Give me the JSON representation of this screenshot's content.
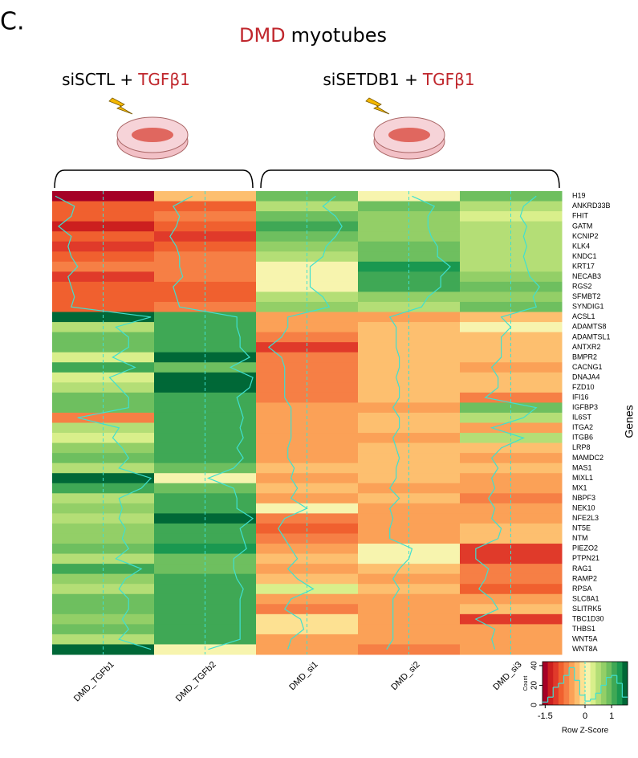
{
  "panel_label": "C.",
  "title": {
    "highlight": "DMD",
    "text": "myotubes"
  },
  "conditions": [
    {
      "label": "siSCTL +",
      "treatment": "TGFβ1"
    },
    {
      "label": "siSETDB1 +",
      "treatment": "TGFβ1"
    }
  ],
  "chart_data": {
    "type": "heatmap",
    "rows": [
      "H19",
      "ANKRD33B",
      "FHIT",
      "GATM",
      "KCNIP2",
      "KLK4",
      "KNDC1",
      "KRT17",
      "NECAB3",
      "RGS2",
      "SFMBT2",
      "SYNDIG1",
      "ACSL1",
      "ADAMTS8",
      "ADAMTSL1",
      "ANTXR2",
      "BMPR2",
      "CACNG1",
      "DNAJA4",
      "FZD10",
      "IFI16",
      "IGFBP3",
      "IL6ST",
      "ITGA2",
      "ITGB6",
      "LRP8",
      "MAMDC2",
      "MAS1",
      "MIXL1",
      "MX1",
      "NBPF3",
      "NEK10",
      "NFE2L3",
      "NT5E",
      "NTM",
      "PIEZO2",
      "PTPN21",
      "RAG1",
      "RAMP2",
      "RPSA",
      "SLC8A1",
      "SLITRK5",
      "TBC1D30",
      "THBS1",
      "WNT5A",
      "WNT8A"
    ],
    "series": [
      {
        "name": "DMD_TGFb1",
        "values": [
          -1.5,
          -0.9,
          -1.0,
          -1.4,
          -1.0,
          -1.1,
          -1.0,
          -0.8,
          -1.1,
          -1.0,
          -0.9,
          -1.0,
          1.5,
          0.4,
          0.8,
          0.8,
          0.3,
          1.0,
          0.2,
          0.5,
          0.8,
          0.8,
          -0.8,
          0.5,
          0.3,
          0.6,
          0.8,
          0.5,
          1.5,
          1.2,
          0.5,
          0.6,
          0.5,
          0.7,
          0.6,
          0.8,
          0.4,
          1.2,
          0.7,
          0.5,
          0.8,
          0.8,
          0.6,
          0.8,
          0.5,
          1.5
        ]
      },
      {
        "name": "DMD_TGFb2",
        "values": [
          -0.4,
          -1.0,
          -0.8,
          -0.9,
          -1.1,
          -0.9,
          -0.8,
          -0.8,
          -0.7,
          -1.0,
          -0.9,
          -0.8,
          1.0,
          1.0,
          1.1,
          1.1,
          1.4,
          0.8,
          1.5,
          1.4,
          1.0,
          1.1,
          1.2,
          1.1,
          1.2,
          1.0,
          1.2,
          0.9,
          0.1,
          0.9,
          1.0,
          1.0,
          1.5,
          1.1,
          1.2,
          1.3,
          0.9,
          0.9,
          1.0,
          1.2,
          1.1,
          1.1,
          1.1,
          1.1,
          1.1,
          0.1
        ]
      },
      {
        "name": "DMD_si1",
        "values": [
          0.9,
          0.5,
          0.9,
          1.1,
          0.9,
          0.6,
          0.5,
          0.1,
          0.1,
          0.1,
          0.5,
          0.7,
          -0.6,
          -0.6,
          -0.8,
          -1.2,
          -0.8,
          -0.7,
          -0.7,
          -0.7,
          -0.7,
          -0.5,
          -0.5,
          -0.5,
          -0.5,
          -0.6,
          -0.6,
          -0.4,
          -0.5,
          -0.3,
          -0.5,
          0.0,
          -0.7,
          -0.9,
          -0.7,
          -0.5,
          -0.3,
          -0.6,
          -0.3,
          0.2,
          -0.5,
          -0.7,
          -0.2,
          -0.1,
          -0.5,
          -0.6
        ]
      },
      {
        "name": "DMD_si2",
        "values": [
          0.1,
          0.8,
          0.6,
          0.6,
          0.7,
          0.9,
          0.9,
          1.3,
          1.0,
          1.0,
          0.6,
          0.4,
          -0.6,
          -0.4,
          -0.4,
          -0.4,
          -0.3,
          -0.3,
          -0.4,
          -0.3,
          -0.3,
          -0.5,
          -0.3,
          -0.3,
          -0.5,
          -0.4,
          -0.3,
          -0.4,
          -0.4,
          -0.6,
          -0.3,
          -0.6,
          -0.5,
          -0.6,
          -0.6,
          0.1,
          0.0,
          -0.3,
          -0.5,
          -0.3,
          -0.5,
          -0.5,
          -0.5,
          -0.5,
          -0.5,
          -0.7
        ]
      },
      {
        "name": "DMD_si3",
        "values": [
          0.8,
          0.4,
          0.3,
          0.5,
          0.4,
          0.5,
          0.4,
          0.5,
          0.6,
          0.9,
          0.7,
          0.8,
          -0.3,
          0.0,
          -0.3,
          -0.3,
          -0.3,
          -0.6,
          -0.4,
          -0.4,
          -0.8,
          0.8,
          0.4,
          -0.6,
          0.4,
          -0.3,
          -0.6,
          -0.4,
          -0.6,
          -0.5,
          -0.7,
          -0.5,
          -0.6,
          -0.3,
          -0.4,
          -1.1,
          -1.1,
          -0.7,
          -0.8,
          -1.0,
          -0.6,
          -0.4,
          -1.1,
          -0.5,
          -0.6,
          -0.5
        ]
      }
    ],
    "zlim": [
      -1.6,
      1.6
    ],
    "colors": [
      "#a50026",
      "#cc1f1f",
      "#e03a2a",
      "#f0602f",
      "#f67f45",
      "#fba157",
      "#fdbf6f",
      "#fde192",
      "#f7f4ae",
      "#d9ef8b",
      "#b4de76",
      "#93cf67",
      "#6ebf5f",
      "#3fa855",
      "#1a9850",
      "#006837"
    ],
    "trace_color": "#3fe0d0",
    "vline": 0,
    "y_label": "Genes",
    "key": {
      "x_label": "Row Z-Score",
      "y_label": "Count",
      "xticks": [
        -1.5,
        0,
        1
      ],
      "bins": [
        -1.6,
        -1.4,
        -1.2,
        -1.0,
        -0.8,
        -0.6,
        -0.4,
        -0.2,
        0,
        0.2,
        0.4,
        0.6,
        0.8,
        1.0,
        1.2,
        1.4,
        1.6
      ],
      "counts": [
        3,
        8,
        18,
        22,
        30,
        38,
        25,
        10,
        4,
        6,
        12,
        20,
        28,
        30,
        22,
        8
      ],
      "ylim": [
        0,
        44
      ],
      "yticks": [
        0,
        20,
        40
      ]
    }
  }
}
